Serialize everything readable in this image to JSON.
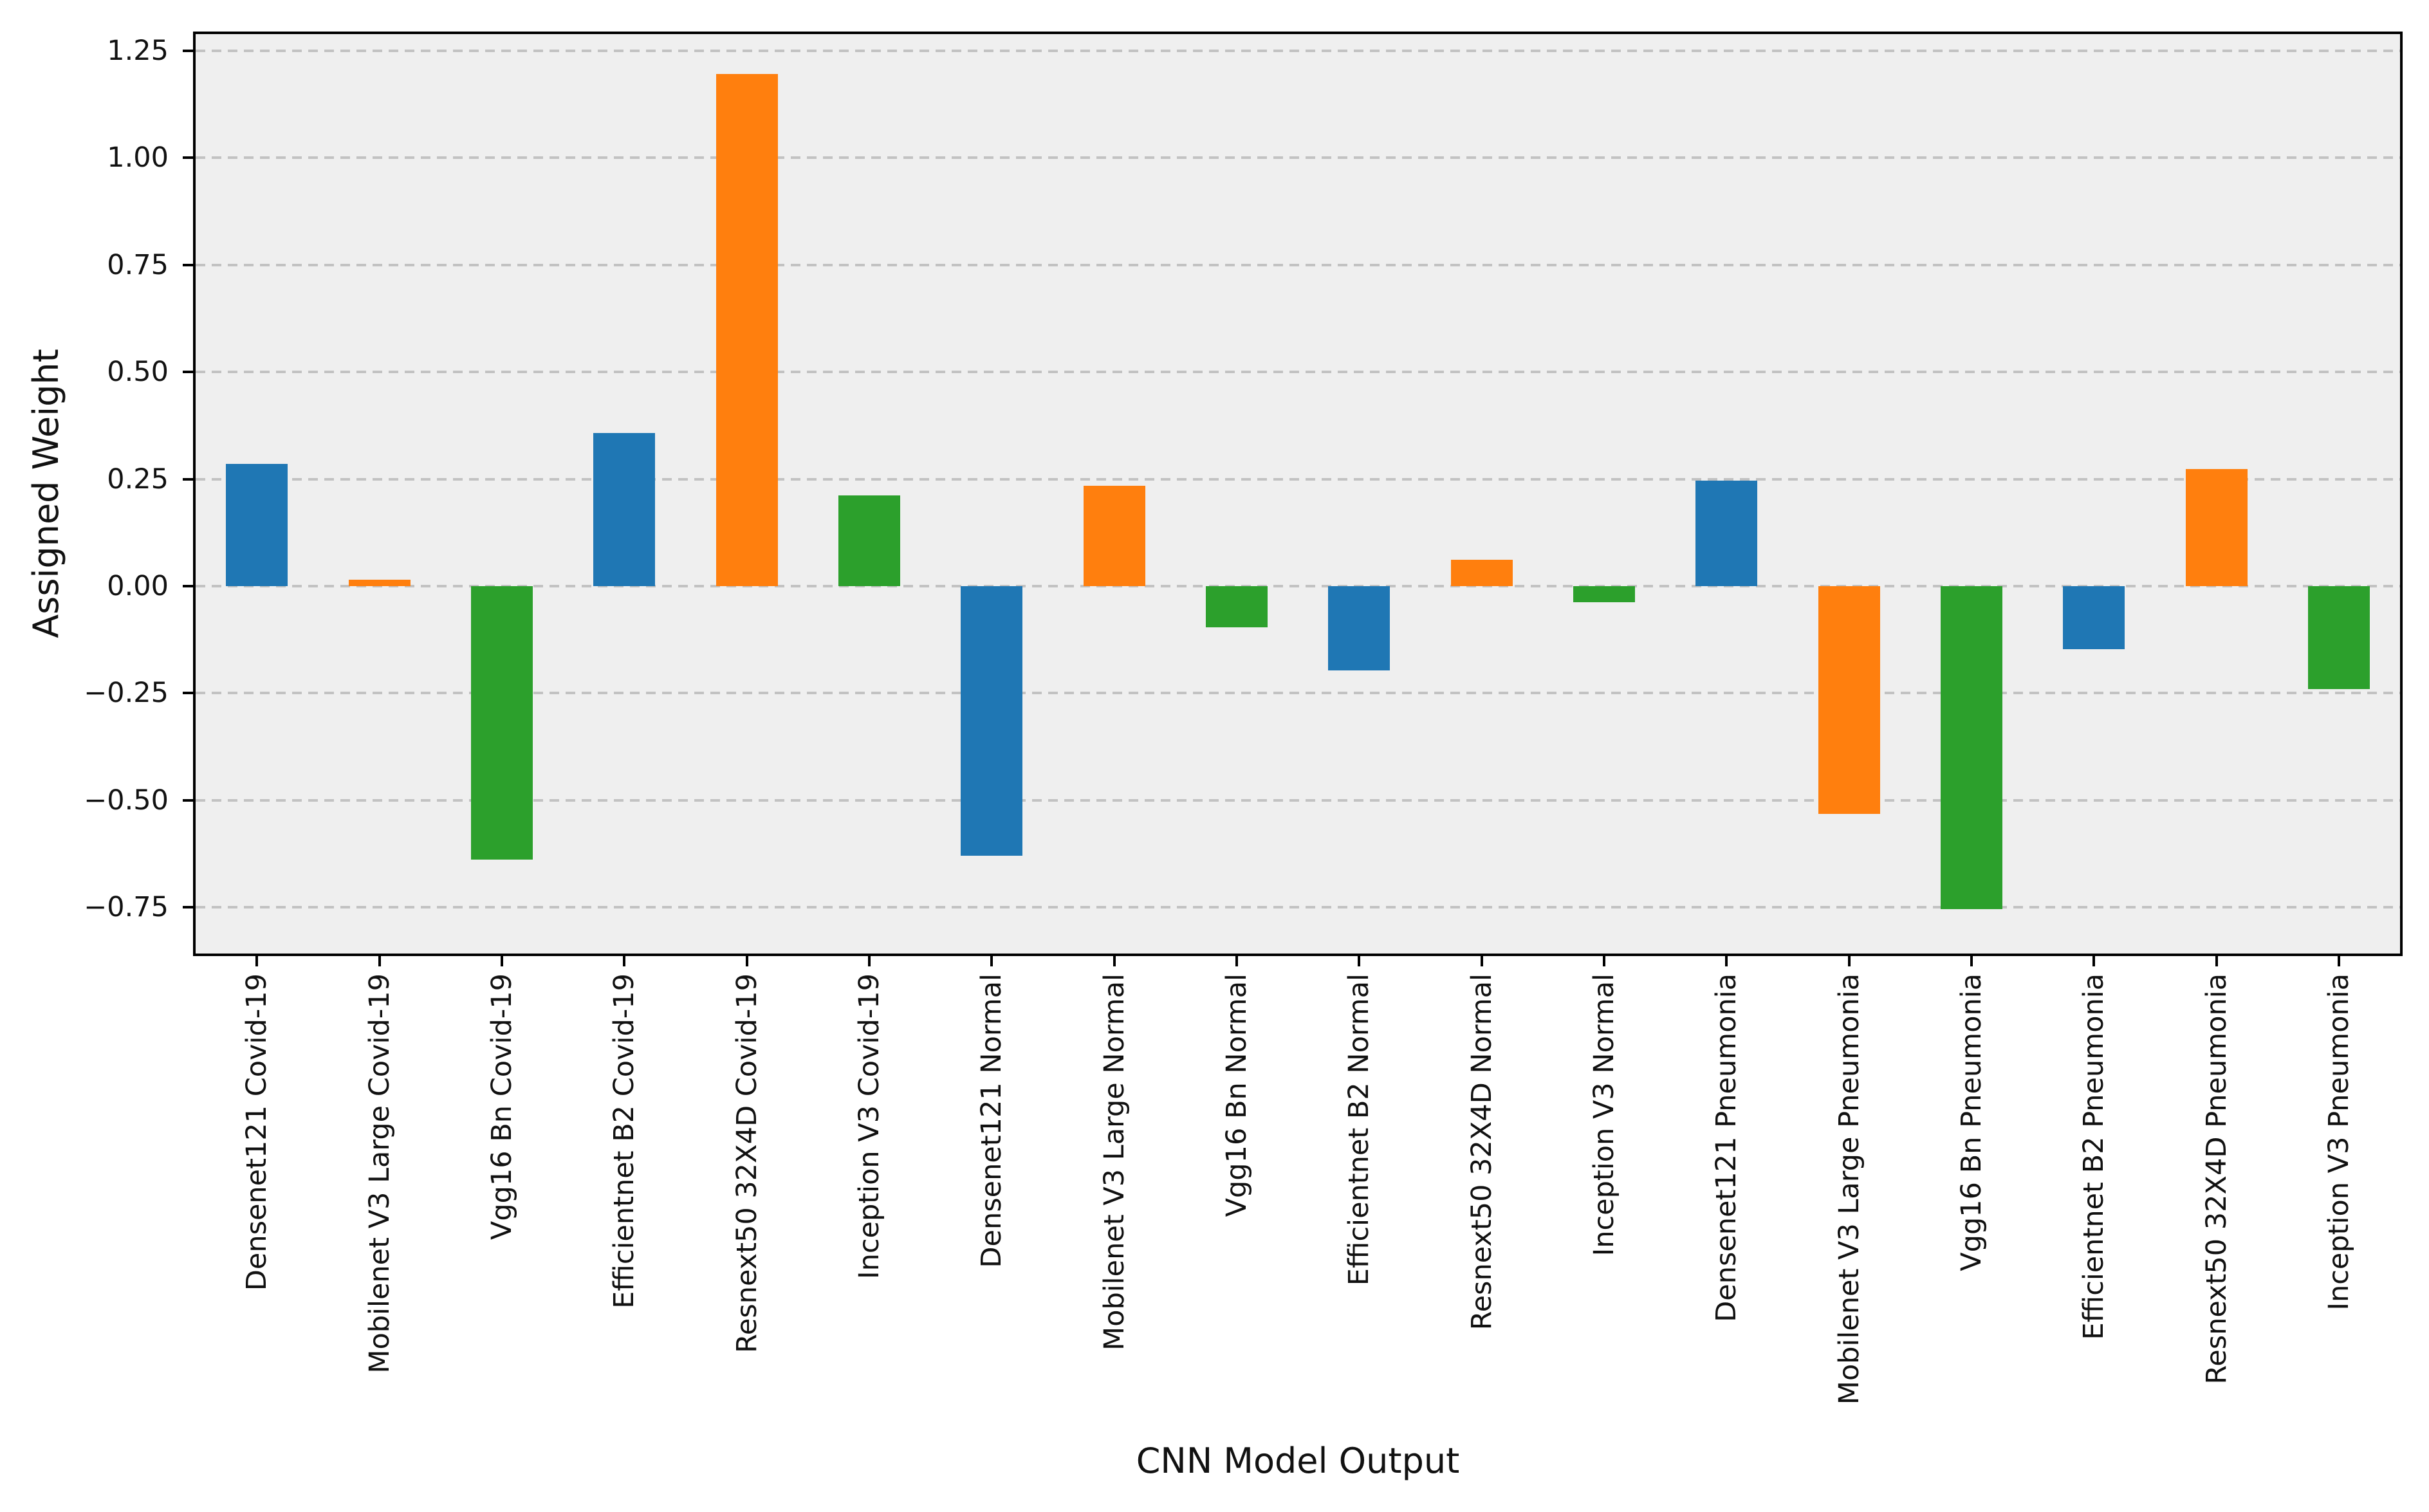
{
  "chart_data": {
    "type": "bar",
    "title": "",
    "xlabel": "CNN Model Output",
    "ylabel": "Assigned Weight",
    "categories": [
      "Densenet121 Covid-19",
      "Mobilenet V3 Large Covid-19",
      "Vgg16 Bn Covid-19",
      "Efficientnet B2 Covid-19",
      "Resnext50 32X4D Covid-19",
      "Inception V3 Covid-19",
      "Densenet121 Normal",
      "Mobilenet V3 Large Normal",
      "Vgg16 Bn Normal",
      "Efficientnet B2 Normal",
      "Resnext50 32X4D Normal",
      "Inception V3 Normal",
      "Densenet121 Pneumonia",
      "Mobilenet V3 Large Pneumonia",
      "Vgg16 Bn Pneumonia",
      "Efficientnet B2 Pneumonia",
      "Resnext50 32X4D Pneumonia",
      "Inception V3 Pneumonia"
    ],
    "values": [
      0.285,
      0.015,
      -0.638,
      0.357,
      1.196,
      0.212,
      -0.63,
      0.235,
      -0.097,
      -0.197,
      0.061,
      -0.038,
      0.246,
      -0.532,
      -0.755,
      -0.148,
      0.273,
      -0.24
    ],
    "bar_colors": [
      "#1f77b4",
      "#ff7f0e",
      "#2ca02c",
      "#1f77b4",
      "#ff7f0e",
      "#2ca02c",
      "#1f77b4",
      "#ff7f0e",
      "#2ca02c",
      "#1f77b4",
      "#ff7f0e",
      "#2ca02c",
      "#1f77b4",
      "#ff7f0e",
      "#2ca02c",
      "#1f77b4",
      "#ff7f0e",
      "#2ca02c"
    ],
    "palette": {
      "blue": "#1f77b4",
      "orange": "#ff7f0e",
      "green": "#2ca02c"
    },
    "ytick_values": [
      1.25,
      1.0,
      0.75,
      0.5,
      0.25,
      0.0,
      -0.25,
      -0.5,
      -0.75
    ],
    "ytick_labels": [
      "1.25",
      "1.00",
      "0.75",
      "0.50",
      "0.25",
      "0.00",
      "−0.25",
      "−0.50",
      "−0.75"
    ],
    "ylim": [
      -0.858,
      1.289
    ],
    "grid": {
      "axis": "y",
      "style": "dashed",
      "color": "#c2c2c2"
    },
    "plot_background": "#efefef",
    "figure_background": "#ffffff",
    "legend": "none"
  }
}
